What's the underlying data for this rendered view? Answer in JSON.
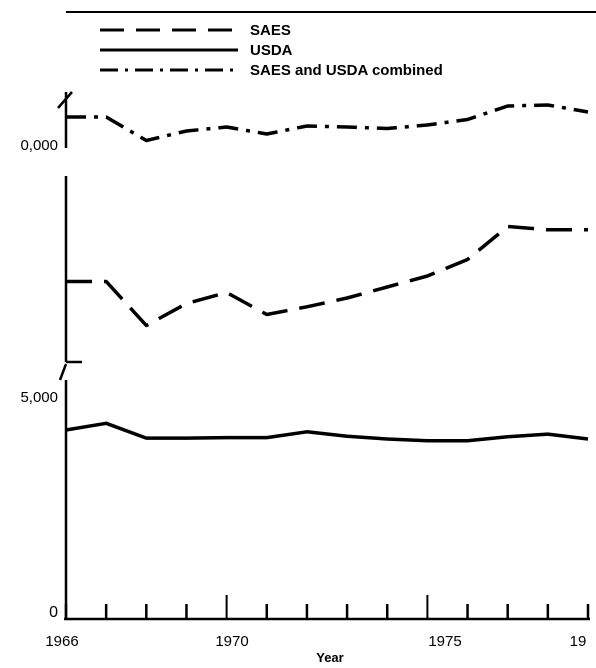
{
  "chart_data": {
    "type": "line",
    "title": "",
    "xlabel": "Year",
    "ylabel": "",
    "xlim": [
      1966,
      1979
    ],
    "x": [
      1966,
      1967,
      1968,
      1969,
      1970,
      1971,
      1972,
      1973,
      1974,
      1975,
      1976,
      1977,
      1978,
      1979
    ],
    "x_tick_labels": [
      "1966",
      "1970",
      "1975",
      "19"
    ],
    "y_tick_labels": [
      "0",
      "5,000",
      "0,000"
    ],
    "axis_breaks": true,
    "grid": false,
    "legend_position": "top",
    "series": [
      {
        "name": "SAES",
        "style": "dashed",
        "values": [
          6850,
          6850,
          6450,
          6650,
          6750,
          6550,
          6620,
          6700,
          6800,
          6900,
          7050,
          7350,
          7320,
          7320
        ]
      },
      {
        "name": "USDA",
        "style": "solid",
        "values": [
          4200,
          4350,
          4020,
          4020,
          4030,
          4030,
          4160,
          4060,
          4000,
          3960,
          3960,
          4050,
          4110,
          4000
        ]
      },
      {
        "name": "SAES and USDA combined",
        "style": "dash-dot",
        "values": [
          11000,
          11000,
          10530,
          10720,
          10800,
          10660,
          10820,
          10800,
          10770,
          10840,
          10950,
          11220,
          11240,
          11100
        ]
      }
    ]
  }
}
